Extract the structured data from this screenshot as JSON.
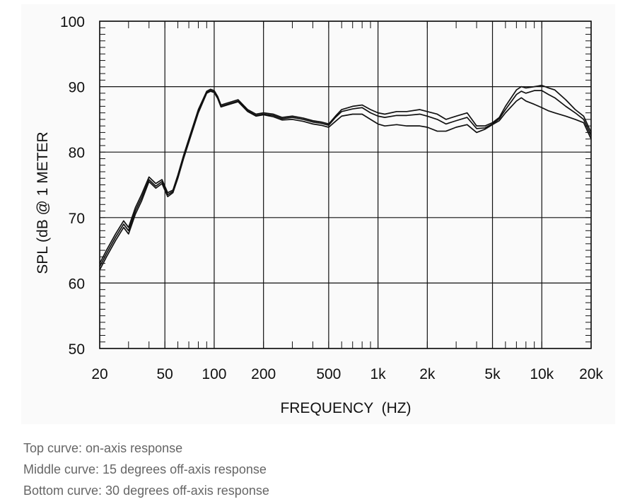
{
  "chart_data": {
    "type": "line",
    "title": "",
    "xlabel": "FREQUENCY  (HZ)",
    "ylabel": "SPL (dB @ 1 METER",
    "x_scale": "log",
    "xlim": [
      20,
      20000
    ],
    "ylim": [
      50,
      100
    ],
    "grid": true,
    "x_ticks": [
      {
        "value": 20,
        "label": "20"
      },
      {
        "value": 50,
        "label": "50"
      },
      {
        "value": 100,
        "label": "100"
      },
      {
        "value": 200,
        "label": "200"
      },
      {
        "value": 500,
        "label": "500"
      },
      {
        "value": 1000,
        "label": "1k"
      },
      {
        "value": 2000,
        "label": "2k"
      },
      {
        "value": 5000,
        "label": "5k"
      },
      {
        "value": 10000,
        "label": "10k"
      },
      {
        "value": 20000,
        "label": "20k"
      }
    ],
    "y_ticks": [
      {
        "value": 50,
        "label": "50"
      },
      {
        "value": 60,
        "label": "60"
      },
      {
        "value": 70,
        "label": "70"
      },
      {
        "value": 80,
        "label": "80"
      },
      {
        "value": 90,
        "label": "90"
      },
      {
        "value": 100,
        "label": "100"
      }
    ],
    "series": [
      {
        "line_color": "#111111",
        "points": [
          [
            20,
            63
          ],
          [
            22,
            65
          ],
          [
            25,
            67.5
          ],
          [
            28,
            69.5
          ],
          [
            30,
            68.5
          ],
          [
            33,
            71.5
          ],
          [
            36,
            73.5
          ],
          [
            40,
            76.2
          ],
          [
            44,
            75.2
          ],
          [
            48,
            75.8
          ],
          [
            52,
            73.8
          ],
          [
            56,
            74.2
          ],
          [
            60,
            76.5
          ],
          [
            65,
            79.5
          ],
          [
            70,
            82
          ],
          [
            80,
            86.5
          ],
          [
            90,
            89.3
          ],
          [
            95,
            89.6
          ],
          [
            100,
            89.4
          ],
          [
            105,
            88.5
          ],
          [
            110,
            87.2
          ],
          [
            120,
            87.5
          ],
          [
            140,
            88
          ],
          [
            160,
            86.5
          ],
          [
            180,
            85.8
          ],
          [
            200,
            86
          ],
          [
            230,
            85.8
          ],
          [
            260,
            85.3
          ],
          [
            300,
            85.5
          ],
          [
            350,
            85.2
          ],
          [
            400,
            84.8
          ],
          [
            450,
            84.6
          ],
          [
            500,
            84.3
          ],
          [
            550,
            85.5
          ],
          [
            600,
            86.5
          ],
          [
            700,
            87
          ],
          [
            800,
            87.2
          ],
          [
            900,
            86.5
          ],
          [
            1000,
            86
          ],
          [
            1100,
            85.8
          ],
          [
            1300,
            86.2
          ],
          [
            1500,
            86.2
          ],
          [
            1800,
            86.5
          ],
          [
            2000,
            86.2
          ],
          [
            2300,
            85.8
          ],
          [
            2600,
            85
          ],
          [
            3000,
            85.5
          ],
          [
            3500,
            86
          ],
          [
            4000,
            84
          ],
          [
            4500,
            84
          ],
          [
            5000,
            84.5
          ],
          [
            5500,
            85.3
          ],
          [
            6000,
            87
          ],
          [
            7000,
            89.5
          ],
          [
            7500,
            90
          ],
          [
            8000,
            89.8
          ],
          [
            9000,
            90
          ],
          [
            10000,
            90.2
          ],
          [
            11000,
            89.8
          ],
          [
            12000,
            89.5
          ],
          [
            14000,
            88
          ],
          [
            16000,
            86.5
          ],
          [
            18000,
            85.5
          ],
          [
            20000,
            83
          ]
        ]
      },
      {
        "line_color": "#111111",
        "points": [
          [
            20,
            62.5
          ],
          [
            22,
            64.5
          ],
          [
            25,
            67
          ],
          [
            28,
            69
          ],
          [
            30,
            68
          ],
          [
            33,
            71
          ],
          [
            36,
            73
          ],
          [
            40,
            75.8
          ],
          [
            44,
            74.8
          ],
          [
            48,
            75.5
          ],
          [
            52,
            73.5
          ],
          [
            56,
            74
          ],
          [
            60,
            76.3
          ],
          [
            65,
            79.3
          ],
          [
            70,
            81.8
          ],
          [
            80,
            86.3
          ],
          [
            90,
            89.1
          ],
          [
            95,
            89.4
          ],
          [
            100,
            89.2
          ],
          [
            105,
            88.3
          ],
          [
            110,
            87
          ],
          [
            120,
            87.3
          ],
          [
            140,
            87.8
          ],
          [
            160,
            86.3
          ],
          [
            180,
            85.6
          ],
          [
            200,
            85.8
          ],
          [
            230,
            85.6
          ],
          [
            260,
            85.1
          ],
          [
            300,
            85.3
          ],
          [
            350,
            85
          ],
          [
            400,
            84.6
          ],
          [
            450,
            84.4
          ],
          [
            500,
            84.1
          ],
          [
            550,
            85.3
          ],
          [
            600,
            86.2
          ],
          [
            700,
            86.6
          ],
          [
            800,
            86.8
          ],
          [
            900,
            86
          ],
          [
            1000,
            85.5
          ],
          [
            1100,
            85.3
          ],
          [
            1300,
            85.6
          ],
          [
            1500,
            85.6
          ],
          [
            1800,
            85.8
          ],
          [
            2000,
            85.5
          ],
          [
            2300,
            85
          ],
          [
            2600,
            84.3
          ],
          [
            3000,
            84.8
          ],
          [
            3500,
            85.3
          ],
          [
            4000,
            83.6
          ],
          [
            4500,
            83.7
          ],
          [
            5000,
            84.3
          ],
          [
            5500,
            85.1
          ],
          [
            6000,
            86.5
          ],
          [
            7000,
            88.8
          ],
          [
            7500,
            89.3
          ],
          [
            8000,
            89
          ],
          [
            9000,
            89.4
          ],
          [
            10000,
            89.4
          ],
          [
            11000,
            88.8
          ],
          [
            12000,
            88.3
          ],
          [
            14000,
            87
          ],
          [
            16000,
            86
          ],
          [
            18000,
            85
          ],
          [
            20000,
            82.5
          ]
        ]
      },
      {
        "line_color": "#111111",
        "points": [
          [
            20,
            62
          ],
          [
            22,
            64
          ],
          [
            25,
            66.5
          ],
          [
            28,
            68.5
          ],
          [
            30,
            67.5
          ],
          [
            33,
            70.5
          ],
          [
            36,
            72.5
          ],
          [
            40,
            75.5
          ],
          [
            44,
            74.5
          ],
          [
            48,
            75.2
          ],
          [
            52,
            73.2
          ],
          [
            56,
            73.8
          ],
          [
            60,
            76
          ],
          [
            65,
            79
          ],
          [
            70,
            81.5
          ],
          [
            80,
            86
          ],
          [
            90,
            89
          ],
          [
            95,
            89.3
          ],
          [
            100,
            89.1
          ],
          [
            105,
            88.2
          ],
          [
            110,
            86.9
          ],
          [
            120,
            87.2
          ],
          [
            140,
            87.7
          ],
          [
            160,
            86.2
          ],
          [
            180,
            85.5
          ],
          [
            200,
            85.7
          ],
          [
            230,
            85.4
          ],
          [
            260,
            84.9
          ],
          [
            300,
            85
          ],
          [
            350,
            84.7
          ],
          [
            400,
            84.3
          ],
          [
            450,
            84.1
          ],
          [
            500,
            83.8
          ],
          [
            550,
            84.7
          ],
          [
            600,
            85.5
          ],
          [
            700,
            85.8
          ],
          [
            800,
            85.8
          ],
          [
            900,
            85
          ],
          [
            1000,
            84.3
          ],
          [
            1100,
            84
          ],
          [
            1300,
            84.2
          ],
          [
            1500,
            84
          ],
          [
            1800,
            84
          ],
          [
            2000,
            83.8
          ],
          [
            2300,
            83.2
          ],
          [
            2600,
            83.2
          ],
          [
            3000,
            83.8
          ],
          [
            3500,
            84.2
          ],
          [
            4000,
            83
          ],
          [
            4500,
            83.5
          ],
          [
            5000,
            84.2
          ],
          [
            5500,
            84.8
          ],
          [
            6000,
            86
          ],
          [
            7000,
            87.8
          ],
          [
            7500,
            88.3
          ],
          [
            8000,
            87.8
          ],
          [
            9000,
            87.3
          ],
          [
            10000,
            86.8
          ],
          [
            11000,
            86.3
          ],
          [
            12000,
            86
          ],
          [
            14000,
            85.5
          ],
          [
            16000,
            85
          ],
          [
            18000,
            84.5
          ],
          [
            20000,
            82
          ]
        ]
      }
    ]
  },
  "captions": [
    "Top curve: on-axis response",
    "Middle curve: 15 degrees off-axis response",
    "Bottom curve: 30 degrees off-axis response"
  ]
}
